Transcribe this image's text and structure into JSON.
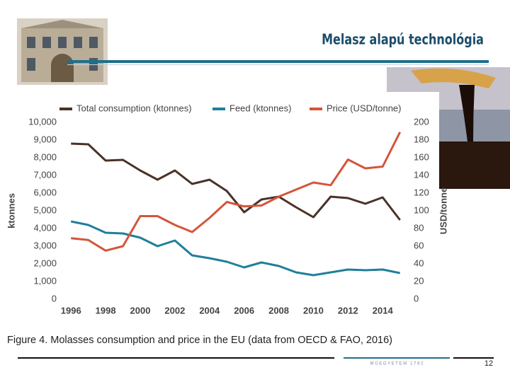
{
  "slide": {
    "title": "Melasz alapú technológia",
    "footer": "M Ű E G Y E T E M   1 7 8 2",
    "page_number": "12"
  },
  "chart_data": {
    "type": "line",
    "title": "Figure 4. Molasses consumption and price in the EU (data from OECD & FAO, 2016)",
    "y_label": "ktonnes",
    "y2_label": "USD/tonne",
    "x": [
      1996,
      1997,
      1998,
      1999,
      2000,
      2001,
      2002,
      2003,
      2004,
      2005,
      2006,
      2007,
      2008,
      2009,
      2010,
      2011,
      2012,
      2013,
      2014,
      2015
    ],
    "series": [
      {
        "name": "Total consumption (ktonnes)",
        "color": "#4a3228",
        "axis": "y",
        "values": [
          8800,
          8760,
          7840,
          7880,
          7280,
          6760,
          7280,
          6520,
          6760,
          6120,
          4920,
          5640,
          5800,
          5200,
          4640,
          5800,
          5720,
          5400,
          5760,
          4480
        ]
      },
      {
        "name": "Feed (ktonnes)",
        "color": "#1f7f9a",
        "axis": "y",
        "values": [
          4400,
          4200,
          3760,
          3720,
          3480,
          3000,
          3320,
          2480,
          2320,
          2120,
          1800,
          2080,
          1880,
          1520,
          1360,
          1520,
          1680,
          1640,
          1680,
          1480
        ]
      },
      {
        "name": "Price (USD/tonne)",
        "color": "#d4553a",
        "axis": "y2",
        "values": [
          69,
          67,
          55,
          60,
          94,
          94,
          84,
          76,
          92,
          110,
          105,
          106,
          116,
          124,
          132,
          129,
          158,
          148,
          150,
          189
        ]
      }
    ],
    "xlim": [
      1995.5,
      2015.3
    ],
    "xticks": [
      1996,
      1998,
      2000,
      2002,
      2004,
      2006,
      2008,
      2010,
      2012,
      2014
    ],
    "ylim": [
      0,
      10000
    ],
    "yticks": [
      0,
      {
        "value": 1000,
        "label": "1,000"
      },
      {
        "value": 2000,
        "label": "2,000"
      },
      {
        "value": 3000,
        "label": "3,000"
      },
      {
        "value": 4000,
        "label": "4,000"
      },
      {
        "value": 5000,
        "label": "5,000"
      },
      {
        "value": 6000,
        "label": "6,000"
      },
      {
        "value": 7000,
        "label": "7,000"
      },
      {
        "value": 8000,
        "label": "8,000"
      },
      {
        "value": 9000,
        "label": "9,000"
      },
      {
        "value": 10000,
        "label": "10,000"
      }
    ],
    "y2lim": [
      0,
      200
    ],
    "y2ticks": [
      0,
      20,
      40,
      60,
      80,
      100,
      120,
      140,
      160,
      180,
      200
    ],
    "legend": "top"
  }
}
